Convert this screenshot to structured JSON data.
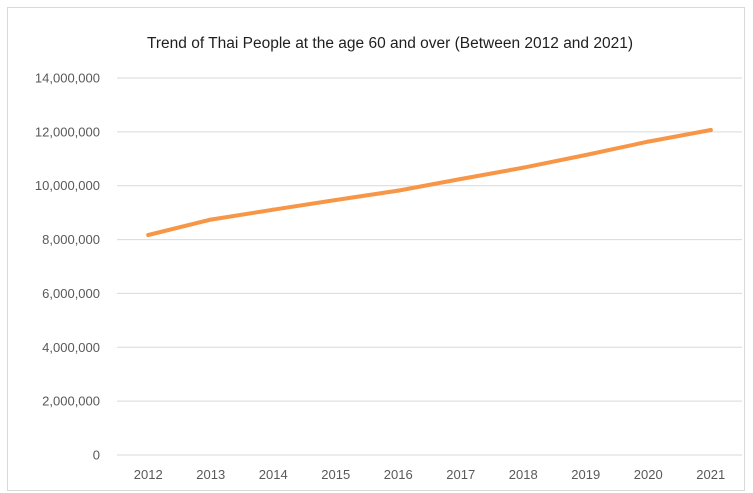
{
  "chart_data": {
    "type": "line",
    "title": "Trend of Thai People at the age 60 and over (Between 2012 and 2021)",
    "xlabel": "",
    "ylabel": "",
    "categories": [
      "2012",
      "2013",
      "2014",
      "2015",
      "2016",
      "2017",
      "2018",
      "2019",
      "2020",
      "2021"
    ],
    "series": [
      {
        "values": [
          8170000,
          8740000,
          9110000,
          9470000,
          9820000,
          10250000,
          10670000,
          11140000,
          11640000,
          12070000
        ],
        "color": "#f79646"
      }
    ],
    "ylim": [
      0,
      14000000
    ],
    "yticks": [
      0,
      2000000,
      4000000,
      6000000,
      8000000,
      10000000,
      12000000,
      14000000
    ],
    "ytick_labels": [
      "0",
      "2,000,000",
      "4,000,000",
      "6,000,000",
      "8,000,000",
      "10,000,000",
      "12,000,000",
      "14,000,000"
    ],
    "grid": true,
    "legend": "none",
    "gridline_color": "#d9d9d9",
    "tick_label_color": "#595959"
  }
}
